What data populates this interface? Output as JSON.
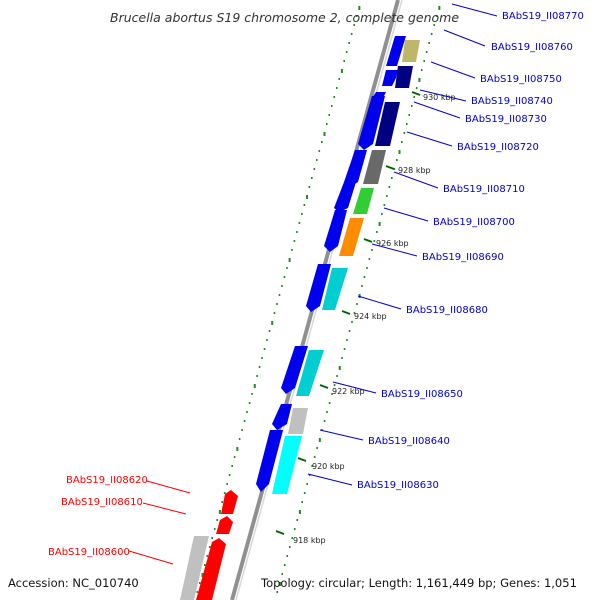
{
  "title": "Brucella abortus S19 chromosome 2, complete genome",
  "accession": "Accession: NC_010740",
  "topology": "Topology: circular; Length: 1,161,449 bp; Genes: 1,051",
  "colors": {
    "forward_strand": "#0000ff",
    "reverse_strand": "#000080",
    "forward_label": "#0000cc",
    "highlight": "#ff0000",
    "tick": "#008000",
    "backbone": "#808080"
  },
  "tick_labels": [
    "930 kbp",
    "928 kbp",
    "926 kbp",
    "924 kbp",
    "922 kbp",
    "920 kbp",
    "918 kbp"
  ],
  "gene_labels_right": [
    "BAbS19_II08770",
    "BAbS19_II08760",
    "BAbS19_II08750",
    "BAbS19_II08740",
    "BAbS19_II08730",
    "BAbS19_II08720",
    "BAbS19_II08710",
    "BAbS19_II08700",
    "BAbS19_II08690",
    "BAbS19_II08680",
    "BAbS19_II08650",
    "BAbS19_II08640",
    "BAbS19_II08630"
  ],
  "gene_labels_left": [
    "BAbS19_II08620",
    "BAbS19_II08610",
    "BAbS19_II08600"
  ]
}
